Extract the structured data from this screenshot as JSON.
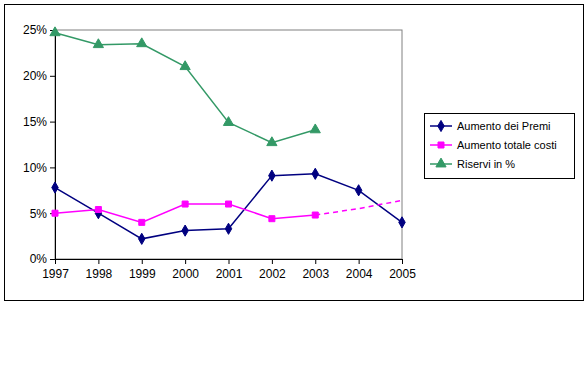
{
  "chart_data": {
    "type": "line",
    "categories": [
      "1997",
      "1998",
      "1999",
      "2000",
      "2001",
      "2002",
      "2003",
      "2004",
      "2005"
    ],
    "series": [
      {
        "name": "Aumento dei Premi",
        "color": "#000080",
        "marker": "diamond",
        "line_style": "solid",
        "values": [
          7.8,
          5.0,
          2.2,
          3.1,
          3.3,
          9.1,
          9.3,
          7.5,
          4.0
        ]
      },
      {
        "name": "Aumento totale costi",
        "color": "#FF00FF",
        "marker": "square",
        "line_style": "solid",
        "values": [
          5.0,
          5.4,
          4.0,
          6.0,
          6.0,
          4.4,
          4.8,
          null,
          null
        ]
      },
      {
        "name": "Riservi in %",
        "color": "#339966",
        "marker": "triangle",
        "line_style": "solid",
        "values": [
          24.7,
          23.4,
          23.5,
          21.0,
          14.9,
          12.7,
          14.1,
          null,
          null
        ]
      },
      {
        "color": "#FF00FF",
        "marker": "none",
        "line_style": "dashed",
        "values": [
          null,
          null,
          null,
          null,
          null,
          null,
          4.8,
          5.5,
          6.4
        ]
      }
    ],
    "ylim": [
      0,
      25
    ],
    "yticks": [
      {
        "value": 0,
        "label": "0%"
      },
      {
        "value": 5,
        "label": "5%"
      },
      {
        "value": 10,
        "label": "10%"
      },
      {
        "value": 15,
        "label": "15%"
      },
      {
        "value": 20,
        "label": "20%"
      },
      {
        "value": 25,
        "label": "25%"
      }
    ],
    "grid": false,
    "legend": "right"
  }
}
